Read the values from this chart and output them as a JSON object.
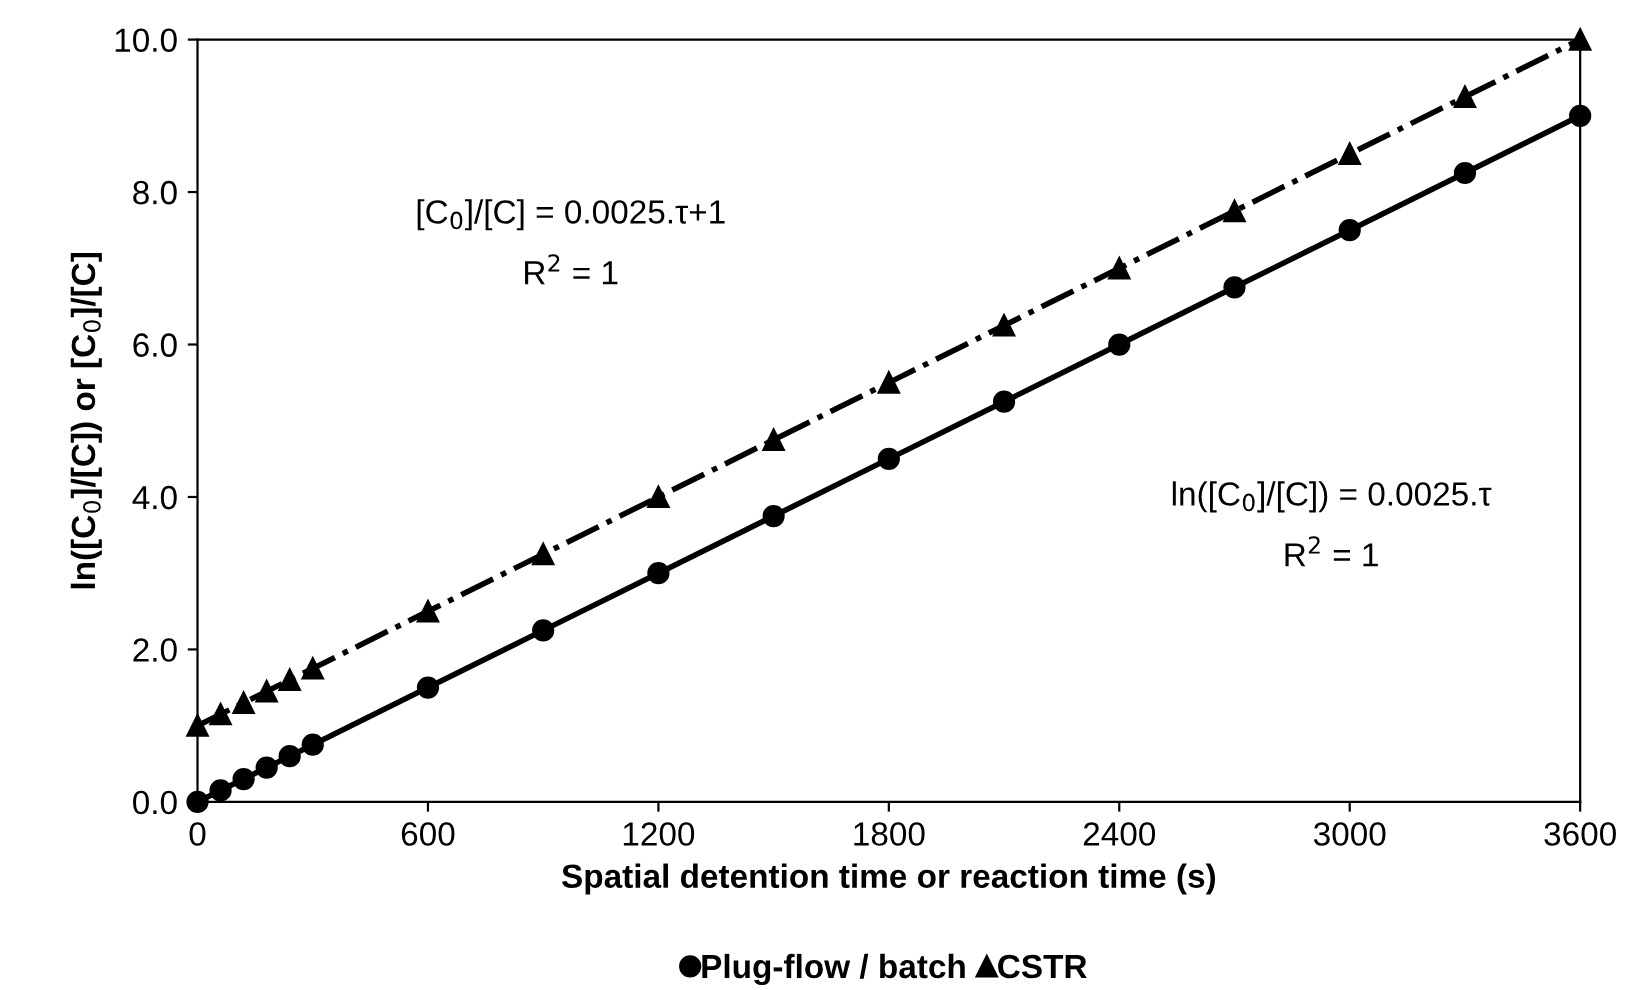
{
  "chart_data": {
    "type": "line",
    "xlabel": "Spatial detention time or reaction time (s)",
    "ylabel": "ln([C$_{0}$]/[C]) or [C$_{0}$]/[C]",
    "x": [
      0,
      60,
      120,
      180,
      240,
      300,
      600,
      900,
      1200,
      1500,
      1800,
      2100,
      2400,
      2700,
      3000,
      3300,
      3600
    ],
    "series": [
      {
        "name": "Plug-flow / batch",
        "color": "#000000",
        "marker": "circle",
        "line_style": "solid",
        "values": [
          0,
          0.15,
          0.3,
          0.45,
          0.6,
          0.75,
          1.5,
          2.25,
          3,
          3.75,
          4.5,
          5.25,
          6,
          6.75,
          7.5,
          8.25,
          9
        ]
      },
      {
        "name": "CSTR",
        "color": "#000000",
        "marker": "triangle",
        "line_style": "dashed",
        "values": [
          1,
          1.15,
          1.3,
          1.45,
          1.6,
          1.75,
          2.5,
          3.25,
          4,
          4.75,
          5.5,
          6.25,
          7,
          7.75,
          8.5,
          9.25,
          10
        ]
      }
    ],
    "annotations": [
      "[C$_{0}$]/[C] = 0.0025.τ+1",
      "R$^{2}$ = 1",
      "ln([C$_{0}$]/[C]) = 0.0025.τ",
      "R$^{2}$ = 1"
    ],
    "xlim": [
      0,
      3600
    ],
    "xticks": [
      0,
      600,
      1200,
      1800,
      2400,
      3000,
      3600
    ],
    "ylim": [
      0,
      10
    ],
    "yticks": [
      {
        "value": 0,
        "label": "0.0"
      },
      {
        "value": 2,
        "label": "2.0"
      },
      {
        "value": 4,
        "label": "4.0"
      },
      {
        "value": 6,
        "label": "6.0"
      },
      {
        "value": 8,
        "label": "8.0"
      },
      {
        "value": 10,
        "label": "10.0"
      }
    ],
    "grid": false,
    "legend": "bottom"
  }
}
